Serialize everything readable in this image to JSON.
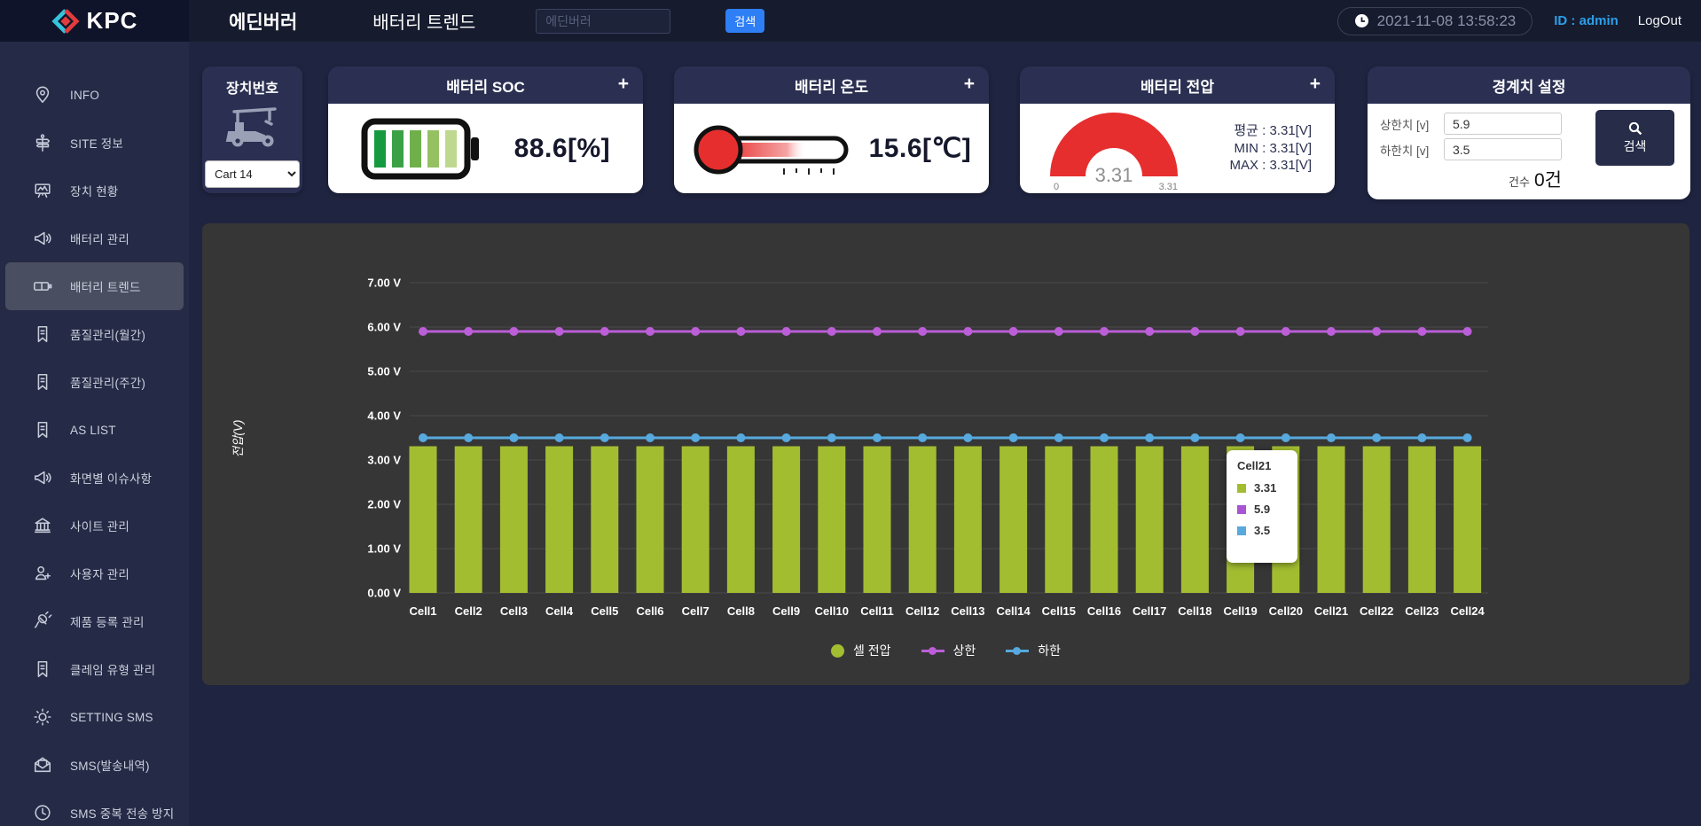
{
  "header": {
    "logo": "KPC",
    "site_title": "에딘버러",
    "page_title": "배터리 트렌드",
    "search_placeholder": "에딘버러",
    "search_button": "검색",
    "datetime": "2021-11-08 13:58:23",
    "user": "ID : admin",
    "logout": "LogOut"
  },
  "sidebar": {
    "items": [
      {
        "label": "INFO",
        "icon": "map-pin",
        "active": false
      },
      {
        "label": "SITE 정보",
        "icon": "signpost",
        "active": false
      },
      {
        "label": "장치 현황",
        "icon": "board",
        "active": false
      },
      {
        "label": "배터리 관리",
        "icon": "megaphone",
        "active": false
      },
      {
        "label": "배터리 트렌드",
        "icon": "battery",
        "active": true
      },
      {
        "label": "품질관리(월간)",
        "icon": "bookmark",
        "active": false
      },
      {
        "label": "품질관리(주간)",
        "icon": "bookmark",
        "active": false
      },
      {
        "label": "AS LIST",
        "icon": "bookmark",
        "active": false
      },
      {
        "label": "화면별 이슈사항",
        "icon": "megaphone",
        "active": false
      },
      {
        "label": "사이트 관리",
        "icon": "bank",
        "active": false
      },
      {
        "label": "사용자 관리",
        "icon": "user-plus",
        "active": false
      },
      {
        "label": "제품 등록 관리",
        "icon": "plug",
        "active": false
      },
      {
        "label": "클레임 유형 관리",
        "icon": "bookmark",
        "active": false
      },
      {
        "label": "SETTING SMS",
        "icon": "gear",
        "active": false
      },
      {
        "label": "SMS(발송내역)",
        "icon": "mail",
        "active": false
      },
      {
        "label": "SMS 중복 전송 방지",
        "icon": "clock",
        "active": false
      }
    ]
  },
  "cards": {
    "plus_symbol": "+",
    "device": {
      "title": "장치번호",
      "selected": "Cart 14"
    },
    "soc": {
      "title": "배터리 SOC",
      "value": "88.6[%]"
    },
    "temp": {
      "title": "배터리 온도",
      "value": "15.6[℃]"
    },
    "voltage": {
      "title": "배터리 전압",
      "gauge_value": "3.31",
      "gauge_min": "0",
      "gauge_max": "3.31",
      "avg": "평균 : 3.31[V]",
      "min": "MIN : 3.31[V]",
      "max": "MAX : 3.31[V]"
    },
    "limits": {
      "title": "경계치 설정",
      "upper_label": "상한치 [v]",
      "upper_value": "5.9",
      "lower_label": "하한치 [v]",
      "lower_value": "3.5",
      "search_button": "검색",
      "count_label": "건수",
      "count_value": "0건"
    }
  },
  "chart_data": {
    "type": "bar",
    "title": "",
    "ylabel": "전압(V)",
    "xlabel": "",
    "ylim": [
      0,
      7
    ],
    "ytick_step": 1,
    "ytick_suffix": " V",
    "grid": true,
    "legend_position": "bottom",
    "categories": [
      "Cell1",
      "Cell2",
      "Cell3",
      "Cell4",
      "Cell5",
      "Cell6",
      "Cell7",
      "Cell8",
      "Cell9",
      "Cell10",
      "Cell11",
      "Cell12",
      "Cell13",
      "Cell14",
      "Cell15",
      "Cell16",
      "Cell17",
      "Cell18",
      "Cell19",
      "Cell20",
      "Cell21",
      "Cell22",
      "Cell23",
      "Cell24"
    ],
    "series": [
      {
        "name": "셀 전압",
        "type": "bar",
        "color": "#a3bd31",
        "values": [
          3.31,
          3.31,
          3.31,
          3.31,
          3.31,
          3.31,
          3.31,
          3.31,
          3.31,
          3.31,
          3.31,
          3.31,
          3.31,
          3.31,
          3.31,
          3.31,
          3.31,
          3.31,
          3.31,
          3.31,
          3.31,
          3.31,
          3.31,
          3.31
        ]
      },
      {
        "name": "상한",
        "type": "line",
        "color": "#bb5ed8",
        "values": [
          5.9,
          5.9,
          5.9,
          5.9,
          5.9,
          5.9,
          5.9,
          5.9,
          5.9,
          5.9,
          5.9,
          5.9,
          5.9,
          5.9,
          5.9,
          5.9,
          5.9,
          5.9,
          5.9,
          5.9,
          5.9,
          5.9,
          5.9,
          5.9
        ]
      },
      {
        "name": "하한",
        "type": "line",
        "color": "#57a9de",
        "values": [
          3.5,
          3.5,
          3.5,
          3.5,
          3.5,
          3.5,
          3.5,
          3.5,
          3.5,
          3.5,
          3.5,
          3.5,
          3.5,
          3.5,
          3.5,
          3.5,
          3.5,
          3.5,
          3.5,
          3.5,
          3.5,
          3.5,
          3.5,
          3.5
        ]
      }
    ],
    "tooltip": {
      "title": "Cell21",
      "rows": [
        {
          "color": "#a3bd31",
          "value": "3.31"
        },
        {
          "color": "#a855d4",
          "value": "5.9"
        },
        {
          "color": "#57a9de",
          "value": "3.5"
        }
      ]
    }
  }
}
